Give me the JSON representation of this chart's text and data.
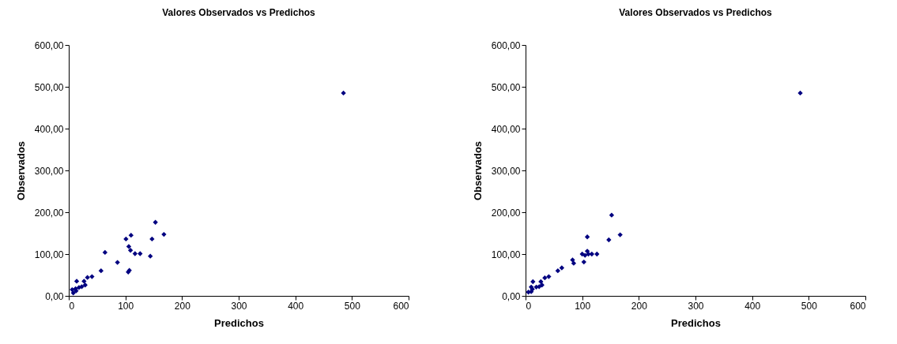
{
  "chart_data": [
    {
      "type": "scatter",
      "title": "Valores Observados vs Predichos",
      "xlabel": "Predichos",
      "ylabel": "Observados",
      "color": "#000080",
      "marker": "diamond",
      "grid": false,
      "x": [
        485,
        153,
        168,
        147,
        110,
        101,
        106,
        109,
        117,
        126,
        144,
        64,
        86,
        57,
        104,
        107,
        105,
        41,
        33,
        27,
        29,
        23,
        18,
        14,
        6,
        10,
        13,
        8,
        12
      ],
      "values": [
        485,
        176,
        147,
        136,
        145,
        136,
        118,
        109,
        101,
        101,
        95,
        104,
        80,
        60,
        null,
        61,
        57,
        46,
        44,
        35,
        26,
        22,
        20,
        35,
        15,
        null,
        12,
        7,
        17
      ],
      "xlim": [
        0,
        600
      ],
      "xticks": [
        0,
        100,
        200,
        300,
        400,
        500,
        600
      ],
      "ylim": [
        0,
        600
      ],
      "yticks": [
        {
          "value": 0,
          "label": "0,00"
        },
        {
          "value": 100,
          "label": "100,00"
        },
        {
          "value": 200,
          "label": "200,00"
        },
        {
          "value": 300,
          "label": "300,00"
        },
        {
          "value": 400,
          "label": "400,00"
        },
        {
          "value": 500,
          "label": "500,00"
        },
        {
          "value": 600,
          "label": "600,00"
        }
      ]
    },
    {
      "type": "scatter",
      "title": "Valores Observados vs Predichos",
      "xlabel": "Predichos",
      "ylabel": "Observados",
      "color": "#000080",
      "marker": "diamond",
      "grid": false,
      "x": [
        485,
        152,
        167,
        147,
        109,
        109,
        100,
        105,
        111,
        117,
        126,
        103,
        83,
        85,
        64,
        57,
        41,
        34,
        27,
        29,
        24,
        19,
        13,
        10,
        7,
        5,
        10,
        12
      ],
      "values": [
        485,
        193,
        146,
        134,
        141,
        107,
        100,
        97,
        100,
        100,
        100,
        81,
        86,
        78,
        67,
        60,
        46,
        43,
        34,
        26,
        22,
        21,
        34,
        21,
        null,
        9,
        10,
        16
      ],
      "xlim": [
        0,
        600
      ],
      "xticks": [
        0,
        100,
        200,
        300,
        400,
        500,
        600
      ],
      "ylim": [
        0,
        600
      ],
      "yticks": [
        {
          "value": 0,
          "label": "0,00"
        },
        {
          "value": 100,
          "label": "100,00"
        },
        {
          "value": 200,
          "label": "200,00"
        },
        {
          "value": 300,
          "label": "300,00"
        },
        {
          "value": 400,
          "label": "400,00"
        },
        {
          "value": 500,
          "label": "500,00"
        },
        {
          "value": 600,
          "label": "600,00"
        }
      ]
    }
  ]
}
